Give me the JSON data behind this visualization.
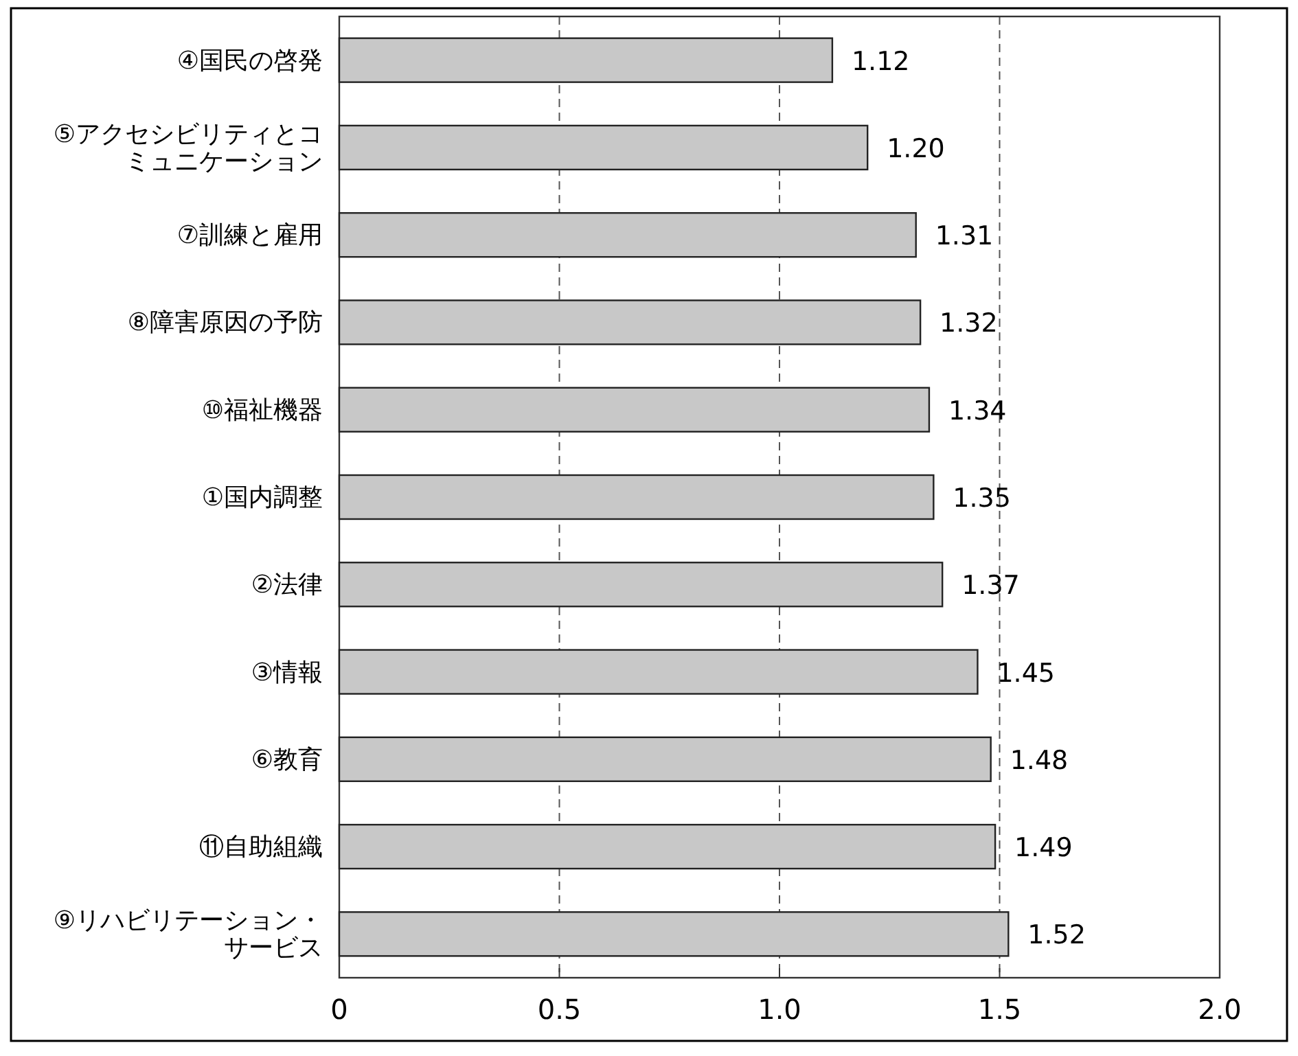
{
  "chart_data": {
    "type": "bar",
    "orientation": "horizontal",
    "categories": [
      "④国民の啓発",
      "⑤アクセシビリティとコミュニケーション",
      "⑦訓練と雇用",
      "⑧障害原因の予防",
      "⑩福祉機器",
      "①国内調整",
      "②法律",
      "③情報",
      "⑥教育",
      "⑪自助組織",
      "⑨リハビリテーション・サービス"
    ],
    "values": [
      1.12,
      1.2,
      1.31,
      1.32,
      1.34,
      1.35,
      1.37,
      1.45,
      1.48,
      1.49,
      1.52
    ],
    "value_labels": [
      "1.12",
      "1.20",
      "1.31",
      "1.32",
      "1.34",
      "1.35",
      "1.37",
      "1.45",
      "1.48",
      "1.49",
      "1.52"
    ],
    "color": "#c8c8c8",
    "xlim": [
      0,
      2
    ],
    "xticks": [
      0,
      0.5,
      {
        "value": 1,
        "label": "1.0"
      },
      1.5,
      {
        "value": 2,
        "label": "2.0"
      }
    ],
    "grid": "x"
  }
}
